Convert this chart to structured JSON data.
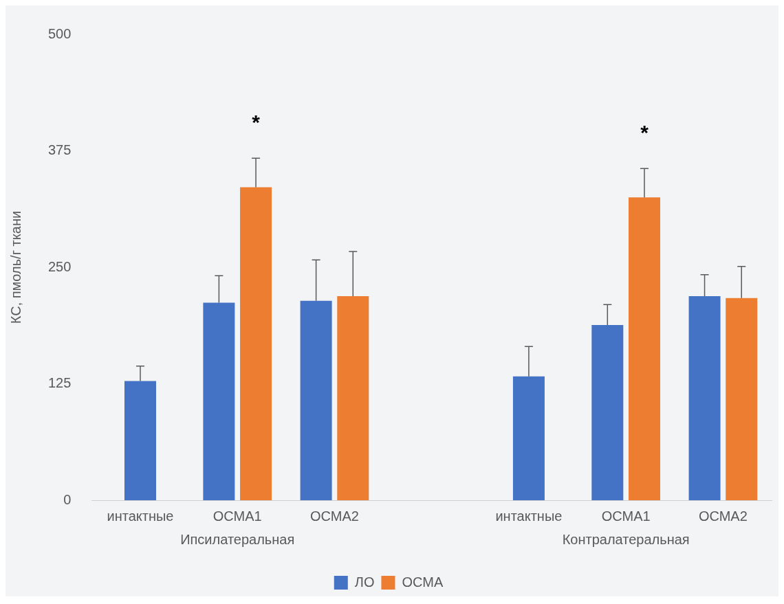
{
  "chart_data": {
    "type": "bar",
    "ylabel": "КС, пмоль/г ткани",
    "categories": [
      "интактные",
      "ОСМА1",
      "ОСМА2",
      null,
      "интактные",
      "ОСМА1",
      "ОСМА2"
    ],
    "series": [
      {
        "name": "ЛО",
        "color": "#4472c4",
        "values": [
          128,
          212,
          214,
          null,
          133,
          188,
          219
        ],
        "errors": [
          [
            128,
            144
          ],
          [
            212,
            241
          ],
          [
            214,
            258
          ],
          null,
          [
            133,
            165
          ],
          [
            188,
            210
          ],
          [
            219,
            242
          ]
        ]
      },
      {
        "name": "ОСМА",
        "color": "#ed7d31",
        "values": [
          null,
          336,
          219,
          null,
          null,
          325,
          217
        ],
        "errors": [
          null,
          [
            336,
            367
          ],
          [
            219,
            267
          ],
          null,
          null,
          [
            325,
            356
          ],
          [
            217,
            251
          ]
        ]
      }
    ],
    "ylim": [
      0,
      500
    ],
    "yticks": [
      0,
      125,
      250,
      375,
      500
    ],
    "grid": false,
    "legend": "bottom",
    "annotations": [
      "Ипсилатеральная",
      "*",
      "Контралатеральная",
      "*"
    ]
  }
}
